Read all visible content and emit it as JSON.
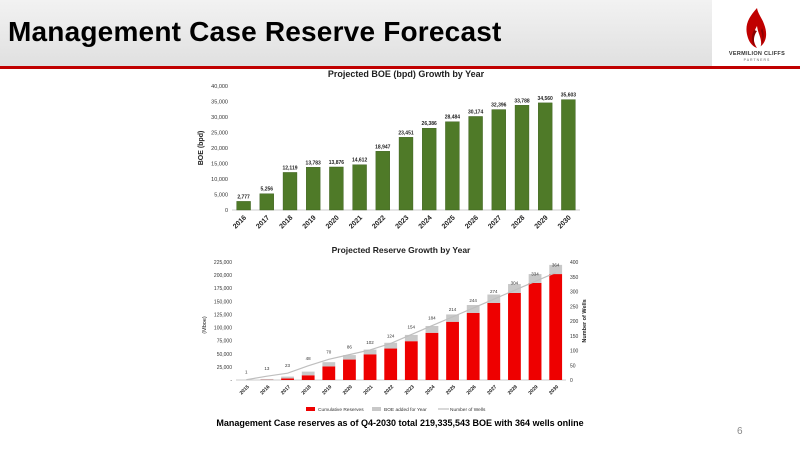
{
  "slide": {
    "title": "Management Case Reserve Forecast",
    "caption": "Management Case reserves as of Q4-2030 total 219,335,543 BOE with 364 wells online",
    "page_number": "6"
  },
  "logo": {
    "name": "VERMILION CLIFFS",
    "sub": "PARTNERS"
  },
  "colors": {
    "bar_green": "#4f7a28",
    "bar_green_dark": "#375a1a",
    "bar_red": "#ee0000",
    "bar_gray": "#c8c8c8",
    "line_gray": "#bfbfbf",
    "accent_red": "#c00000"
  },
  "chart_data": [
    {
      "type": "bar",
      "title": "Projected BOE (bpd) Growth by Year",
      "ylabel": "BOE (bpd)",
      "categories": [
        "2016",
        "2017",
        "2018",
        "2019",
        "2020",
        "2021",
        "2022",
        "2023",
        "2024",
        "2025",
        "2026",
        "2027",
        "2028",
        "2029",
        "2030"
      ],
      "values": [
        2777,
        5256,
        12119,
        13783,
        13876,
        14612,
        18947,
        23451,
        26386,
        28484,
        30174,
        32396,
        33788,
        34560,
        35603
      ],
      "data_labels": [
        "2,777",
        "5,256",
        "12,119",
        "13,783",
        "13,876",
        "14,612",
        "18,947",
        "23,451",
        "26,386",
        "28,484",
        "30,174",
        "32,396",
        "33,788",
        "34,560",
        "35,603"
      ],
      "ylim": [
        0,
        40000
      ],
      "yticks": [
        "0",
        "5,000",
        "10,000",
        "15,000",
        "20,000",
        "25,000",
        "30,000",
        "35,000",
        "40,000"
      ],
      "grid": false
    },
    {
      "type": "bar",
      "title": "Projected Reserve Growth by Year",
      "ylabel": "(Mboe)",
      "y2label": "Number of Wells",
      "categories": [
        "2015",
        "2016",
        "2017",
        "2018",
        "2019",
        "2020",
        "2021",
        "2022",
        "2023",
        "2024",
        "2025",
        "2026",
        "2027",
        "2028",
        "2029",
        "2030"
      ],
      "series": [
        {
          "name": "Cumulative Reserves",
          "values": [
            0,
            500,
            3000,
            9000,
            26000,
            39000,
            49000,
            60000,
            74000,
            90000,
            111000,
            128000,
            147000,
            166000,
            185000,
            202000
          ]
        },
        {
          "name": "BOE added for Year",
          "values": [
            200,
            1500,
            3500,
            7000,
            8000,
            8500,
            9000,
            11000,
            12000,
            13000,
            14000,
            15000,
            16000,
            17000,
            17000,
            17500
          ]
        },
        {
          "name": "Number of Wells",
          "values": [
            1,
            13,
            23,
            48,
            70,
            86,
            102,
            124,
            154,
            184,
            214,
            244,
            274,
            304,
            334,
            364
          ]
        }
      ],
      "wells_labels": [
        "1",
        "13",
        "23",
        "48",
        "70",
        "86",
        "102",
        "124",
        "154",
        "184",
        "214",
        "244",
        "274",
        "304",
        "334",
        "364"
      ],
      "ylim": [
        0,
        225000
      ],
      "yticks": [
        "-",
        "25,000",
        "50,000",
        "75,000",
        "100,000",
        "125,000",
        "150,000",
        "175,000",
        "200,000",
        "225,000"
      ],
      "y2lim": [
        0,
        400
      ],
      "y2ticks": [
        "0",
        "50",
        "100",
        "150",
        "200",
        "250",
        "300",
        "350",
        "400"
      ],
      "legend": [
        "Cumulative Reserves",
        "BOE added for Year",
        "Number of Wells"
      ],
      "legend_position": "bottom",
      "grid": false
    }
  ]
}
